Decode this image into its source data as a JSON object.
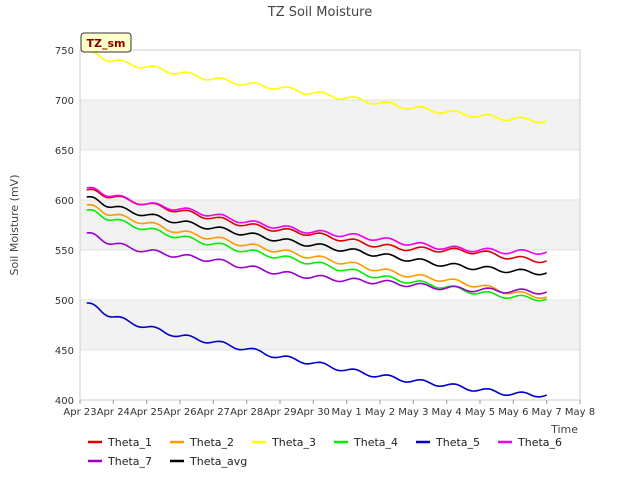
{
  "chart_data": {
    "type": "line",
    "title": "TZ Soil Moisture",
    "xlabel": "Time",
    "ylabel": "Soil Moisture (mV)",
    "site_badge": "TZ_sm",
    "ylim": [
      400,
      750
    ],
    "yticks": [
      400,
      450,
      500,
      550,
      600,
      650,
      700,
      750
    ],
    "xlim": [
      0,
      15
    ],
    "xticks": [
      {
        "x": 0,
        "label": "Apr 23"
      },
      {
        "x": 1,
        "label": "Apr 24"
      },
      {
        "x": 2,
        "label": "Apr 25"
      },
      {
        "x": 3,
        "label": "Apr 26"
      },
      {
        "x": 4,
        "label": "Apr 27"
      },
      {
        "x": 5,
        "label": "Apr 28"
      },
      {
        "x": 6,
        "label": "Apr 29"
      },
      {
        "x": 7,
        "label": "Apr 30"
      },
      {
        "x": 8,
        "label": "May 1"
      },
      {
        "x": 9,
        "label": "May 2"
      },
      {
        "x": 10,
        "label": "May 3"
      },
      {
        "x": 11,
        "label": "May 4"
      },
      {
        "x": 12,
        "label": "May 5"
      },
      {
        "x": 13,
        "label": "May 6"
      },
      {
        "x": 14,
        "label": "May 7"
      },
      {
        "x": 15,
        "label": "May 8"
      }
    ],
    "x": [
      0.2,
      1,
      2,
      3,
      4,
      5,
      6,
      7,
      8,
      9,
      10,
      11,
      12,
      13,
      14
    ],
    "series": [
      {
        "name": "Theta_1",
        "color": "#dd0000",
        "values": [
          610,
          603,
          596,
          589,
          582,
          575,
          570,
          566,
          560,
          554,
          551,
          550,
          548,
          542,
          539
        ]
      },
      {
        "name": "Theta_2",
        "color": "#ff9900",
        "values": [
          595,
          585,
          577,
          568,
          562,
          555,
          549,
          543,
          537,
          530,
          524,
          520,
          514,
          507,
          503
        ]
      },
      {
        "name": "Theta_3",
        "color": "#ffff00",
        "values": [
          748,
          739,
          733,
          727,
          721,
          716,
          712,
          707,
          702,
          697,
          692,
          688,
          684,
          681,
          679
        ]
      },
      {
        "name": "Theta_4",
        "color": "#00ee00",
        "values": [
          590,
          580,
          571,
          563,
          556,
          549,
          543,
          537,
          530,
          523,
          518,
          513,
          507,
          503,
          501
        ]
      },
      {
        "name": "Theta_5",
        "color": "#0000cc",
        "values": [
          497,
          483,
          473,
          464,
          458,
          451,
          443,
          437,
          430,
          424,
          419,
          415,
          410,
          406,
          405
        ]
      },
      {
        "name": "Theta_6",
        "color": "#ee00ee",
        "values": [
          612,
          604,
          596,
          591,
          585,
          578,
          573,
          568,
          565,
          561,
          556,
          552,
          550,
          548,
          548
        ]
      },
      {
        "name": "Theta_7",
        "color": "#9900cc",
        "values": [
          567,
          556,
          549,
          544,
          540,
          533,
          527,
          523,
          520,
          518,
          515,
          512,
          510,
          509,
          508
        ]
      },
      {
        "name": "Theta_avg",
        "color": "#000000",
        "values": [
          603,
          593,
          585,
          578,
          572,
          566,
          560,
          555,
          550,
          545,
          540,
          535,
          532,
          529,
          527
        ]
      }
    ],
    "legend_position": "bottom"
  }
}
